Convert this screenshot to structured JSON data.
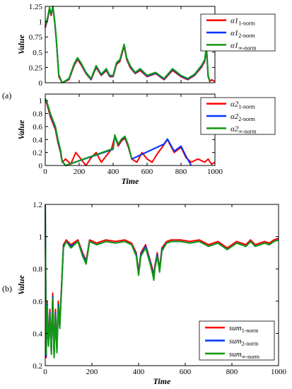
{
  "panel_labels": [
    "(a)",
    "(b)"
  ],
  "chart_data": [
    {
      "type": "line",
      "xlabel": "",
      "ylabel": "Value",
      "xlim": [
        0,
        1000
      ],
      "ylim": [
        0,
        1.25
      ],
      "xticks": [],
      "yticks": [
        0,
        0.25,
        0.5,
        0.75,
        1,
        1.25
      ],
      "ytick_labels": [
        "0",
        "0.25",
        "0.5",
        "0.75",
        "1",
        "1.25"
      ],
      "legend_position": "top-right",
      "series": [
        {
          "name": "α1",
          "sub": "1-norm",
          "color": "#ff0000",
          "x": [
            0,
            15,
            25,
            35,
            45,
            55,
            65,
            80,
            100,
            140,
            170,
            190,
            210,
            240,
            270,
            300,
            330,
            360,
            380,
            400,
            420,
            440,
            455,
            465,
            480,
            500,
            530,
            560,
            600,
            650,
            700,
            750,
            800,
            840,
            880,
            920,
            940,
            950,
            960,
            970,
            980,
            1000
          ],
          "y": [
            0.9,
            1.05,
            1.2,
            1.1,
            1.25,
            1.0,
            0.7,
            0.1,
            0.0,
            0.05,
            0.28,
            0.38,
            0.3,
            0.15,
            0.05,
            0.25,
            0.12,
            0.2,
            0.1,
            0.1,
            0.3,
            0.35,
            0.5,
            0.6,
            0.38,
            0.25,
            0.15,
            0.2,
            0.1,
            0.15,
            0.05,
            0.2,
            0.1,
            0.05,
            0.12,
            0.25,
            0.35,
            0.55,
            0.1,
            0.02,
            0.05,
            0.02
          ]
        },
        {
          "name": "α1",
          "sub": "2-norm",
          "color": "#0033ff",
          "x": [
            0,
            15,
            25,
            35,
            45,
            55,
            65,
            80,
            100,
            140,
            170,
            190,
            210,
            240,
            270,
            300,
            330,
            360,
            380,
            400,
            420,
            440,
            455,
            465,
            480,
            500,
            530,
            560,
            600,
            650,
            700,
            750,
            800,
            840,
            880,
            920,
            940,
            950,
            960,
            970
          ],
          "y": [
            0.92,
            1.07,
            1.22,
            1.12,
            1.25,
            1.02,
            0.72,
            0.12,
            0.0,
            0.06,
            0.3,
            0.4,
            0.32,
            0.16,
            0.06,
            0.27,
            0.13,
            0.22,
            0.11,
            0.11,
            0.32,
            0.37,
            0.52,
            0.62,
            0.4,
            0.27,
            0.16,
            0.22,
            0.11,
            0.16,
            0.06,
            0.22,
            0.11,
            0.06,
            0.13,
            0.27,
            0.37,
            0.58,
            0.11,
            0.02
          ]
        },
        {
          "name": "α1",
          "sub": "∞-norm",
          "color": "#119911",
          "x": [
            0,
            15,
            25,
            35,
            45,
            55,
            65,
            80,
            100,
            140,
            170,
            190,
            210,
            240,
            270,
            300,
            330,
            360,
            380,
            400,
            420,
            440,
            455,
            465,
            480,
            500,
            530,
            560,
            600,
            650,
            700,
            750,
            800,
            840,
            880,
            920,
            940,
            950,
            960,
            970
          ],
          "y": [
            0.93,
            1.08,
            1.23,
            1.13,
            1.25,
            1.03,
            0.73,
            0.13,
            0.0,
            0.07,
            0.31,
            0.41,
            0.33,
            0.17,
            0.07,
            0.28,
            0.14,
            0.23,
            0.12,
            0.12,
            0.33,
            0.38,
            0.53,
            0.63,
            0.41,
            0.28,
            0.17,
            0.23,
            0.12,
            0.17,
            0.07,
            0.23,
            0.12,
            0.07,
            0.14,
            0.28,
            0.38,
            0.6,
            0.12,
            0.02
          ]
        }
      ]
    },
    {
      "type": "line",
      "xlabel": "Time",
      "ylabel": "Value",
      "xlim": [
        0,
        1000
      ],
      "ylim": [
        0,
        1.1
      ],
      "xticks": [
        0,
        200,
        400,
        600,
        800,
        1000
      ],
      "yticks": [
        0,
        0.2,
        0.4,
        0.6,
        0.8,
        1
      ],
      "ytick_labels": [
        "0",
        "0.2",
        "0.4",
        "0.6",
        "0.8",
        "1"
      ],
      "legend_position": "top-right",
      "series": [
        {
          "name": "α2",
          "sub": "1-norm",
          "color": "#ff0000",
          "x": [
            0,
            10,
            20,
            30,
            45,
            60,
            75,
            90,
            100,
            120,
            150,
            180,
            210,
            240,
            270,
            300,
            330,
            360,
            390,
            410,
            430,
            450,
            470,
            490,
            510,
            540,
            570,
            600,
            630,
            660,
            700,
            720,
            760,
            800,
            830,
            860,
            900,
            940,
            960,
            980,
            1000
          ],
          "y": [
            1.0,
            0.95,
            0.85,
            0.75,
            0.65,
            0.55,
            0.35,
            0.2,
            0.05,
            0.1,
            0.02,
            0.2,
            0.1,
            0.0,
            0.12,
            0.2,
            0.05,
            0.15,
            0.25,
            0.45,
            0.3,
            0.38,
            0.42,
            0.28,
            0.1,
            0.05,
            0.2,
            0.1,
            0.05,
            0.18,
            0.32,
            0.4,
            0.2,
            0.28,
            0.12,
            0.05,
            0.1,
            0.05,
            0.1,
            0.02,
            0.05
          ]
        },
        {
          "name": "α2",
          "sub": "2-norm",
          "color": "#0033ff",
          "x": [
            0,
            10,
            20,
            30,
            45,
            60,
            75,
            90,
            100,
            120,
            400,
            410,
            430,
            450,
            470,
            490,
            510,
            700,
            720,
            760,
            800,
            830,
            860
          ],
          "y": [
            1.02,
            0.97,
            0.88,
            0.78,
            0.68,
            0.58,
            0.38,
            0.22,
            0.06,
            0.0,
            0.25,
            0.46,
            0.32,
            0.4,
            0.44,
            0.3,
            0.1,
            0.33,
            0.41,
            0.22,
            0.3,
            0.14,
            0.0
          ]
        },
        {
          "name": "α2",
          "sub": "∞-norm",
          "color": "#119911",
          "x": [
            0,
            10,
            20,
            30,
            45,
            60,
            75,
            90,
            100,
            120,
            400,
            410,
            430,
            450,
            470,
            490,
            510
          ],
          "y": [
            1.03,
            0.98,
            0.89,
            0.8,
            0.7,
            0.6,
            0.4,
            0.24,
            0.07,
            0.0,
            0.26,
            0.47,
            0.33,
            0.41,
            0.45,
            0.31,
            0.1
          ]
        }
      ]
    },
    {
      "type": "line",
      "xlabel": "Time",
      "ylabel": "Value",
      "xlim": [
        0,
        1000
      ],
      "ylim": [
        0.2,
        1.2
      ],
      "xticks": [
        0,
        200,
        400,
        600,
        800,
        1000
      ],
      "yticks": [
        0.2,
        0.4,
        0.6,
        0.8,
        1,
        1.2
      ],
      "ytick_labels": [
        "0.2",
        "0.4",
        "0.6",
        "0.8",
        "1",
        "1.2"
      ],
      "legend_position": "bottom-right",
      "series": [
        {
          "name": "sum",
          "sub": "1-norm",
          "color": "#ff0000",
          "x": [
            0,
            4,
            8,
            14,
            20,
            26,
            32,
            38,
            44,
            50,
            56,
            62,
            70,
            78,
            90,
            110,
            140,
            160,
            175,
            190,
            220,
            260,
            300,
            340,
            370,
            390,
            400,
            410,
            430,
            450,
            460,
            465,
            470,
            480,
            490,
            500,
            520,
            540,
            580,
            620,
            660,
            700,
            740,
            780,
            820,
            860,
            880,
            900,
            940,
            960,
            980,
            1000
          ],
          "y": [
            1.2,
            0.25,
            0.6,
            0.35,
            0.55,
            0.3,
            0.65,
            0.28,
            0.55,
            0.3,
            0.6,
            0.45,
            0.7,
            0.95,
            0.98,
            0.95,
            0.98,
            0.9,
            0.85,
            0.98,
            0.96,
            0.98,
            0.97,
            0.98,
            0.96,
            0.9,
            0.78,
            0.9,
            0.95,
            0.85,
            0.8,
            0.75,
            0.82,
            0.9,
            0.8,
            0.93,
            0.97,
            0.98,
            0.98,
            0.97,
            0.98,
            0.95,
            0.97,
            0.93,
            0.97,
            0.95,
            0.98,
            0.95,
            0.97,
            0.96,
            0.98,
            0.99
          ]
        },
        {
          "name": "sum",
          "sub": "2-norm",
          "color": "#0033ff",
          "x": [
            0,
            4,
            8,
            14,
            20,
            26,
            32,
            38,
            44,
            50,
            56,
            62,
            70,
            78,
            90,
            110,
            140,
            160,
            175,
            190,
            220,
            260,
            300,
            340,
            370,
            390,
            400,
            410,
            430,
            450,
            460,
            465,
            470,
            480,
            490,
            500,
            520,
            540,
            580,
            620,
            660,
            700,
            740,
            780,
            820,
            860,
            880,
            900,
            940,
            960,
            980,
            1000
          ],
          "y": [
            1.2,
            0.26,
            0.58,
            0.33,
            0.53,
            0.28,
            0.63,
            0.26,
            0.53,
            0.29,
            0.58,
            0.44,
            0.69,
            0.94,
            0.97,
            0.94,
            0.97,
            0.89,
            0.84,
            0.97,
            0.95,
            0.97,
            0.96,
            0.97,
            0.95,
            0.89,
            0.77,
            0.89,
            0.94,
            0.84,
            0.78,
            0.74,
            0.81,
            0.89,
            0.79,
            0.92,
            0.96,
            0.97,
            0.97,
            0.96,
            0.97,
            0.94,
            0.96,
            0.92,
            0.96,
            0.94,
            0.97,
            0.94,
            0.96,
            0.95,
            0.97,
            0.98
          ]
        },
        {
          "name": "sum",
          "sub": "∞-norm",
          "color": "#119911",
          "x": [
            0,
            4,
            8,
            14,
            20,
            26,
            32,
            38,
            44,
            50,
            56,
            62,
            70,
            78,
            90,
            110,
            140,
            160,
            175,
            190,
            220,
            260,
            300,
            340,
            370,
            390,
            400,
            410,
            430,
            450,
            460,
            465,
            470,
            480,
            490,
            500,
            520,
            540,
            580,
            620,
            660,
            700,
            740,
            780,
            820,
            860,
            880,
            900,
            940,
            960,
            980,
            1000
          ],
          "y": [
            1.2,
            0.27,
            0.57,
            0.32,
            0.52,
            0.27,
            0.62,
            0.25,
            0.52,
            0.28,
            0.57,
            0.43,
            0.68,
            0.93,
            0.97,
            0.93,
            0.97,
            0.88,
            0.83,
            0.97,
            0.95,
            0.97,
            0.96,
            0.97,
            0.95,
            0.88,
            0.76,
            0.88,
            0.93,
            0.83,
            0.77,
            0.73,
            0.8,
            0.88,
            0.78,
            0.91,
            0.96,
            0.97,
            0.97,
            0.96,
            0.97,
            0.94,
            0.96,
            0.92,
            0.96,
            0.94,
            0.97,
            0.94,
            0.96,
            0.95,
            0.97,
            0.98
          ]
        }
      ]
    }
  ]
}
